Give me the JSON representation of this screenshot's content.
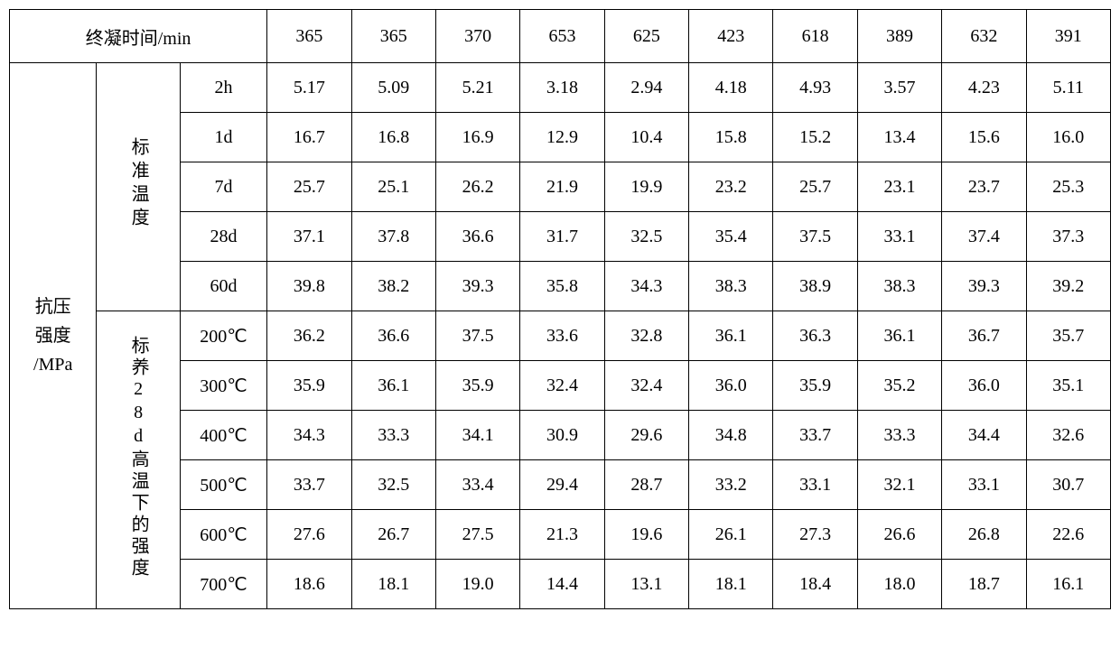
{
  "table": {
    "border_color": "#000000",
    "background_color": "#ffffff",
    "text_color": "#000000",
    "font_family": "SimSun",
    "cell_fontsize": 20,
    "header": {
      "label": "终凝时间/min",
      "values": [
        "365",
        "365",
        "370",
        "653",
        "625",
        "423",
        "618",
        "389",
        "632",
        "391"
      ]
    },
    "body": {
      "group_label": "抗压\n强度\n/MPa",
      "sections": [
        {
          "label": "标准温度",
          "rows": [
            {
              "label": "2h",
              "values": [
                "5.17",
                "5.09",
                "5.21",
                "3.18",
                "2.94",
                "4.18",
                "4.93",
                "3.57",
                "4.23",
                "5.11"
              ]
            },
            {
              "label": "1d",
              "values": [
                "16.7",
                "16.8",
                "16.9",
                "12.9",
                "10.4",
                "15.8",
                "15.2",
                "13.4",
                "15.6",
                "16.0"
              ]
            },
            {
              "label": "7d",
              "values": [
                "25.7",
                "25.1",
                "26.2",
                "21.9",
                "19.9",
                "23.2",
                "25.7",
                "23.1",
                "23.7",
                "25.3"
              ]
            },
            {
              "label": "28d",
              "values": [
                "37.1",
                "37.8",
                "36.6",
                "31.7",
                "32.5",
                "35.4",
                "37.5",
                "33.1",
                "37.4",
                "37.3"
              ]
            },
            {
              "label": "60d",
              "values": [
                "39.8",
                "38.2",
                "39.3",
                "35.8",
                "34.3",
                "38.3",
                "38.9",
                "38.3",
                "39.3",
                "39.2"
              ]
            }
          ]
        },
        {
          "label": "标养28d高温下的强度",
          "rows": [
            {
              "label": "200℃",
              "values": [
                "36.2",
                "36.6",
                "37.5",
                "33.6",
                "32.8",
                "36.1",
                "36.3",
                "36.1",
                "36.7",
                "35.7"
              ]
            },
            {
              "label": "300℃",
              "values": [
                "35.9",
                "36.1",
                "35.9",
                "32.4",
                "32.4",
                "36.0",
                "35.9",
                "35.2",
                "36.0",
                "35.1"
              ]
            },
            {
              "label": "400℃",
              "values": [
                "34.3",
                "33.3",
                "34.1",
                "30.9",
                "29.6",
                "34.8",
                "33.7",
                "33.3",
                "34.4",
                "32.6"
              ]
            },
            {
              "label": "500℃",
              "values": [
                "33.7",
                "32.5",
                "33.4",
                "29.4",
                "28.7",
                "33.2",
                "33.1",
                "32.1",
                "33.1",
                "30.7"
              ]
            },
            {
              "label": "600℃",
              "values": [
                "27.6",
                "26.7",
                "27.5",
                "21.3",
                "19.6",
                "26.1",
                "27.3",
                "26.6",
                "26.8",
                "22.6"
              ]
            },
            {
              "label": "700℃",
              "values": [
                "18.6",
                "18.1",
                "19.0",
                "14.4",
                "13.1",
                "18.1",
                "18.4",
                "18.0",
                "18.7",
                "16.1"
              ]
            }
          ]
        }
      ]
    }
  }
}
